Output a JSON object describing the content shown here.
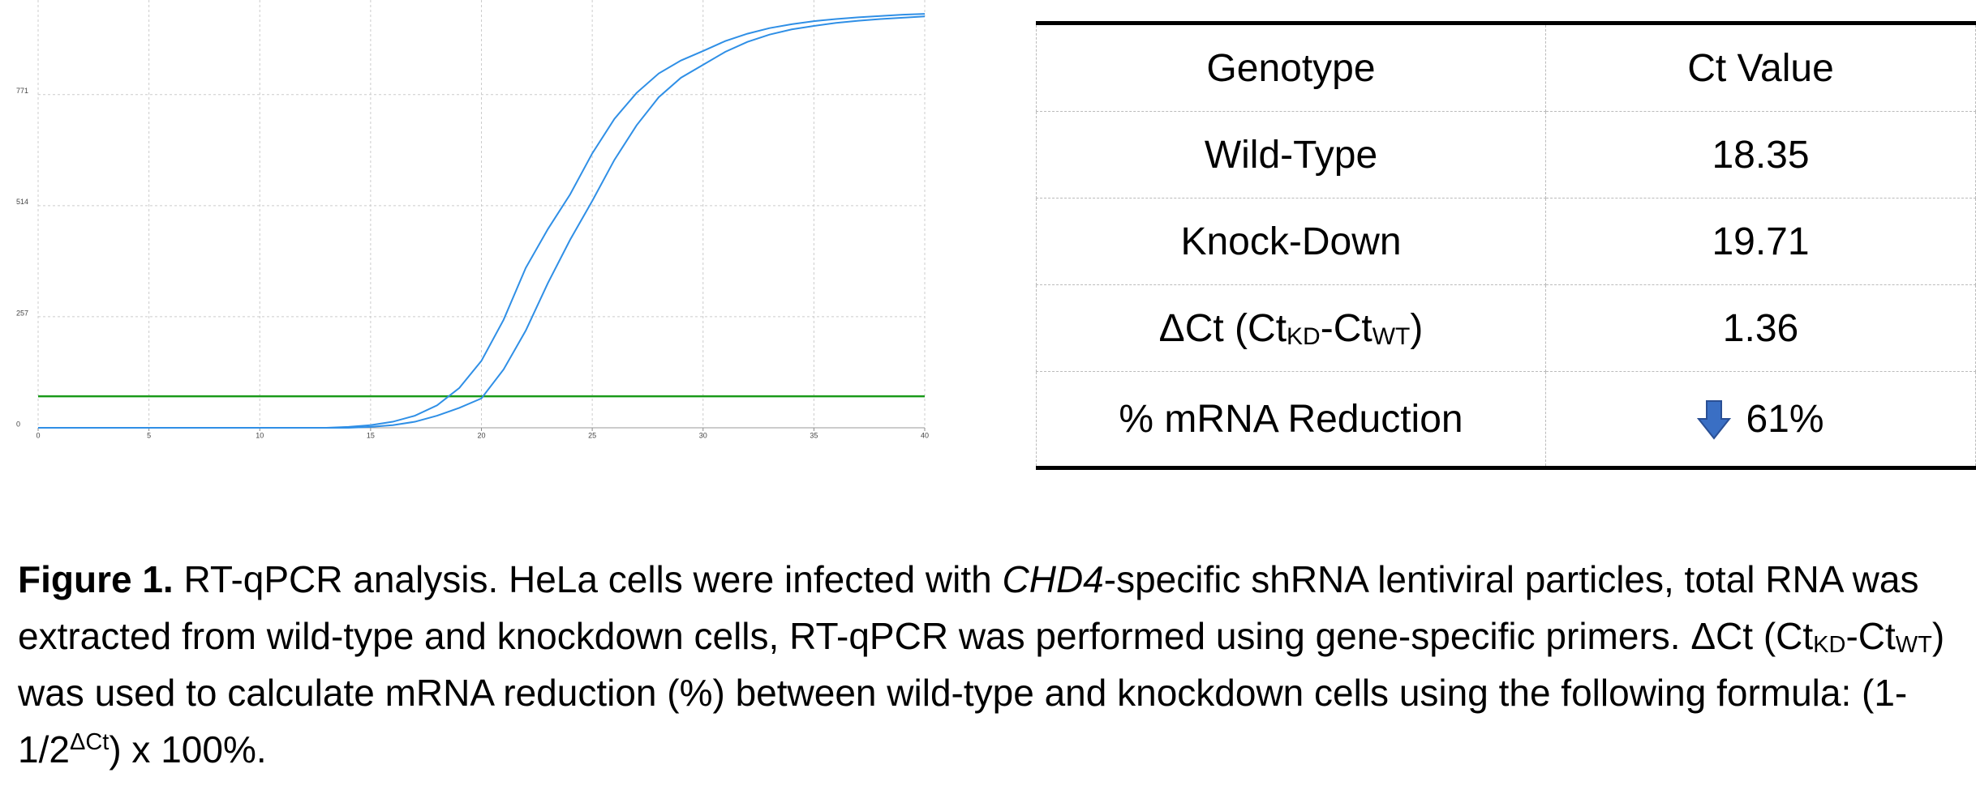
{
  "chart_data": {
    "type": "line",
    "x": [
      0,
      1,
      2,
      3,
      4,
      5,
      6,
      7,
      8,
      9,
      10,
      11,
      12,
      13,
      14,
      15,
      16,
      17,
      18,
      19,
      20,
      21,
      22,
      23,
      24,
      25,
      26,
      27,
      28,
      29,
      30,
      31,
      32,
      33,
      34,
      35,
      36,
      37,
      38,
      39,
      40
    ],
    "series": [
      {
        "color": "#2f8fe6",
        "values": [
          0,
          0,
          0,
          0,
          0,
          0,
          0,
          0,
          0,
          0,
          0,
          0,
          0,
          0,
          2,
          6,
          14,
          28,
          52,
          92,
          155,
          250,
          370,
          460,
          540,
          635,
          715,
          775,
          820,
          850,
          872,
          895,
          912,
          925,
          934,
          941,
          946,
          950,
          953,
          956,
          958
        ]
      },
      {
        "color": "#2f8fe6",
        "values": [
          0,
          0,
          0,
          0,
          0,
          0,
          0,
          0,
          0,
          0,
          0,
          0,
          0,
          0,
          0,
          2,
          6,
          14,
          28,
          46,
          68,
          135,
          225,
          335,
          435,
          525,
          620,
          700,
          765,
          810,
          840,
          870,
          893,
          910,
          922,
          930,
          937,
          942,
          946,
          949,
          952
        ]
      }
    ],
    "threshold": {
      "value": 73,
      "color": "#1a9a1a"
    },
    "xlim": [
      0,
      40
    ],
    "xticks": [
      0,
      5,
      10,
      15,
      20,
      25,
      30,
      35,
      40
    ],
    "ylim": [
      0,
      990
    ],
    "yticks": [
      0,
      257,
      514,
      771
    ],
    "grid": true
  },
  "table": {
    "header": [
      "Genotype",
      "Ct Value"
    ],
    "rows": [
      [
        "Wild-Type",
        "18.35"
      ],
      [
        "Knock-Down",
        "19.71"
      ],
      [
        [
          "ΔCt (Ct",
          "KD",
          "-Ct",
          "WT",
          ")"
        ],
        "1.36"
      ],
      [
        "% mRNA Reduction",
        "61%"
      ]
    ]
  },
  "caption": {
    "label": "Figure 1.",
    "parts": [
      " RT-qPCR analysis. HeLa cells were infected with ",
      "CHD4",
      "-specific shRNA lentiviral particles, total RNA was extracted from wild-type and knockdown cells, RT-qPCR was performed using gene-specific primers. ΔCt (Ct",
      "KD",
      "-Ct",
      "WT",
      ") was used to calculate mRNA reduction (%) between wild-type and knockdown cells using the following formula: (1-1/2",
      "ΔCt",
      ") x 100%."
    ]
  }
}
